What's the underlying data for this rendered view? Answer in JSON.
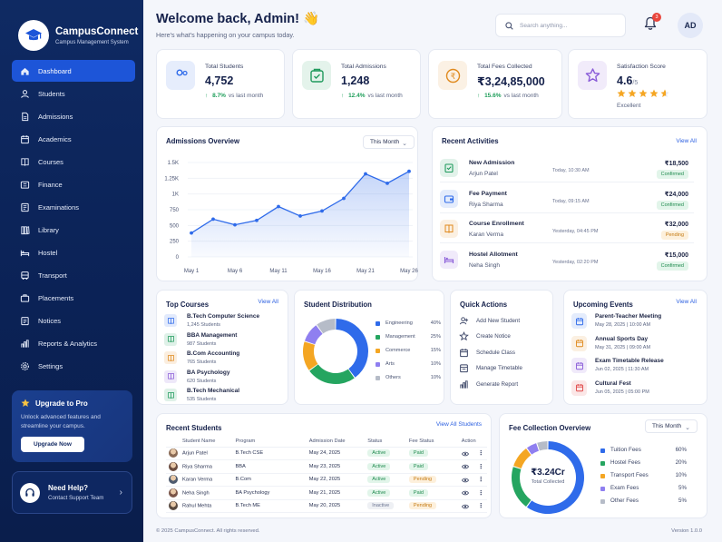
{
  "brand": {
    "name": "CampusConnect",
    "subtitle": "Campus Management System"
  },
  "sidebar": {
    "items": [
      {
        "label": "Dashboard",
        "icon": "home-icon",
        "active": true
      },
      {
        "label": "Students",
        "icon": "user-icon"
      },
      {
        "label": "Admissions",
        "icon": "document-icon"
      },
      {
        "label": "Academics",
        "icon": "calendar-icon"
      },
      {
        "label": "Courses",
        "icon": "book-icon"
      },
      {
        "label": "Finance",
        "icon": "finance-icon"
      },
      {
        "label": "Examinations",
        "icon": "exam-icon"
      },
      {
        "label": "Library",
        "icon": "library-icon"
      },
      {
        "label": "Hostel",
        "icon": "bed-icon"
      },
      {
        "label": "Transport",
        "icon": "bus-icon"
      },
      {
        "label": "Placements",
        "icon": "briefcase-icon"
      },
      {
        "label": "Notices",
        "icon": "notice-icon"
      },
      {
        "label": "Reports & Analytics",
        "icon": "report-icon"
      },
      {
        "label": "Settings",
        "icon": "gear-icon"
      }
    ],
    "promo": {
      "title": "Upgrade to Pro",
      "description": "Unlock advanced features and streamline your campus.",
      "button": "Upgrade Now"
    },
    "help": {
      "title": "Need Help?",
      "subtitle": "Contact Support Team"
    }
  },
  "header": {
    "welcome": "Welcome back, Admin! 👋",
    "subtitle": "Here's what's happening on your campus today.",
    "search_placeholder": "Search anything...",
    "notification_count": "3",
    "avatar_initials": "AD"
  },
  "stats": [
    {
      "label": "Total Students",
      "value": "4,752",
      "trend": "8.7%",
      "trend_note": "vs last month",
      "color": "#2f6bea"
    },
    {
      "label": "Total Admissions",
      "value": "1,248",
      "trend": "12.4%",
      "trend_note": "vs last month",
      "color": "#1f9a5c"
    },
    {
      "label": "Total Fees Collected",
      "value": "₹3,24,85,000",
      "trend": "15.6%",
      "trend_note": "vs last month",
      "color": "#e08a1e"
    },
    {
      "label": "Satisfaction Score",
      "value": "4.6",
      "value_suffix": "/5",
      "rating": 4.6,
      "note": "Excellent",
      "color": "#8a5cd8"
    }
  ],
  "admissions": {
    "title": "Admissions Overview",
    "period": "This Month",
    "chart_data": {
      "type": "area",
      "x": [
        "May 1",
        "May 3",
        "May 6",
        "May 8",
        "May 11",
        "May 13",
        "May 16",
        "May 18",
        "May 21",
        "May 23",
        "May 26"
      ],
      "xticks": [
        "May 1",
        "May 6",
        "May 11",
        "May 16",
        "May 21",
        "May 26"
      ],
      "yticks": [
        "0",
        "250",
        "500",
        "750",
        "1K",
        "1.25K",
        "1.5K"
      ],
      "values": [
        380,
        600,
        510,
        580,
        800,
        650,
        730,
        930,
        1320,
        1170,
        1360
      ],
      "ylim": [
        0,
        1500
      ],
      "color": "#2f6bea"
    }
  },
  "activities": {
    "title": "Recent Activities",
    "view_all": "View All",
    "items": [
      {
        "title": "New Admission",
        "name": "Arjun Patel",
        "time": "Today, 10:30 AM",
        "amount": "₹18,500",
        "status": "Confirmed",
        "icon": "admission-icon",
        "color": "#1f9a5c"
      },
      {
        "title": "Fee Payment",
        "name": "Riya Sharma",
        "time": "Today, 09:15 AM",
        "amount": "₹24,000",
        "status": "Confirmed",
        "icon": "wallet-icon",
        "color": "#2f6bea"
      },
      {
        "title": "Course Enrollment",
        "name": "Karan Verma",
        "time": "Yesterday, 04:45 PM",
        "amount": "₹32,000",
        "status": "Pending",
        "icon": "book-icon",
        "color": "#e08a1e"
      },
      {
        "title": "Hostel Allotment",
        "name": "Neha Singh",
        "time": "Yesterday, 02:20 PM",
        "amount": "₹15,000",
        "status": "Confirmed",
        "icon": "bed-icon",
        "color": "#8a5cd8"
      }
    ]
  },
  "top_courses": {
    "title": "Top Courses",
    "view_all": "View All",
    "items": [
      {
        "name": "B.Tech Computer Science",
        "students": "1,245 Students",
        "color": "#2f6bea"
      },
      {
        "name": "BBA Management",
        "students": "987 Students",
        "color": "#1f9a5c"
      },
      {
        "name": "B.Com Accounting",
        "students": "765 Students",
        "color": "#e08a1e"
      },
      {
        "name": "BA Psychology",
        "students": "620 Students",
        "color": "#8a5cd8"
      },
      {
        "name": "B.Tech Mechanical",
        "students": "535 Students",
        "color": "#1f9a5c"
      }
    ]
  },
  "distribution": {
    "title": "Student Distribution",
    "chart_data": {
      "type": "pie",
      "categories": [
        "Engineering",
        "Management",
        "Commerce",
        "Arts",
        "Others"
      ],
      "values": [
        40,
        25,
        15,
        10,
        10
      ],
      "labels": [
        "40%",
        "25%",
        "15%",
        "10%",
        "10%"
      ],
      "colors": [
        "#2f6bea",
        "#25a560",
        "#f4a623",
        "#8f7ff0",
        "#b6bcc8"
      ]
    }
  },
  "quick_actions": {
    "title": "Quick Actions",
    "items": [
      {
        "label": "Add New Student",
        "icon": "add-user-icon"
      },
      {
        "label": "Create Notice",
        "icon": "star-icon"
      },
      {
        "label": "Schedule Class",
        "icon": "calendar-icon"
      },
      {
        "label": "Manage Timetable",
        "icon": "timetable-icon"
      },
      {
        "label": "Generate Report",
        "icon": "report-icon"
      }
    ]
  },
  "events": {
    "title": "Upcoming Events",
    "view_all": "View All",
    "items": [
      {
        "title": "Parent-Teacher Meeting",
        "date": "May 28, 2025  |  10:00 AM",
        "color": "#2f6bea"
      },
      {
        "title": "Annual Sports Day",
        "date": "May 31, 2025  |  09:00 AM",
        "color": "#e08a1e"
      },
      {
        "title": "Exam Timetable Release",
        "date": "Jun 02, 2025  |  11:30 AM",
        "color": "#8a5cd8"
      },
      {
        "title": "Cultural Fest",
        "date": "Jun 05, 2025  |  05:00 PM",
        "color": "#e04848"
      }
    ]
  },
  "recent_students": {
    "title": "Recent Students",
    "view_all": "View All Students",
    "columns": [
      "Student Name",
      "Program",
      "Admission Date",
      "Status",
      "Fee Status",
      "Action"
    ],
    "rows": [
      {
        "name": "Arjun Patel",
        "program": "B.Tech  CSE",
        "date": "May 24, 2025",
        "status": "Active",
        "fee": "Paid",
        "avatar": "#8a6a55"
      },
      {
        "name": "Riya Sharma",
        "program": "BBA",
        "date": "May 23, 2025",
        "status": "Active",
        "fee": "Paid",
        "avatar": "#6b4c3f"
      },
      {
        "name": "Karan Verma",
        "program": "B.Com",
        "date": "May 22, 2025",
        "status": "Active",
        "fee": "Pending",
        "avatar": "#4d5a6e"
      },
      {
        "name": "Neha Singh",
        "program": "BA Psychology",
        "date": "May 21, 2025",
        "status": "Active",
        "fee": "Paid",
        "avatar": "#7a5548"
      },
      {
        "name": "Rahul Mehta",
        "program": "B.Tech  ME",
        "date": "May 20, 2025",
        "status": "Inactive",
        "fee": "Pending",
        "avatar": "#5a4a40"
      }
    ]
  },
  "fee_collection": {
    "title": "Fee Collection Overview",
    "period": "This Month",
    "total": "₹3.24Cr",
    "total_label": "Total Collected",
    "chart_data": {
      "type": "pie",
      "categories": [
        "Tuition Fees",
        "Hostel Fees",
        "Transport Fees",
        "Exam Fees",
        "Other Fees"
      ],
      "values": [
        60,
        20,
        10,
        5,
        5
      ],
      "labels": [
        "60%",
        "20%",
        "10%",
        "5%",
        "5%"
      ],
      "colors": [
        "#2f6bea",
        "#25a560",
        "#f4a623",
        "#8f7ff0",
        "#b6bcc8"
      ]
    }
  },
  "footer": {
    "copyright": "© 2025 CampusConnect. All rights reserved.",
    "version": "Version 1.0.0"
  }
}
